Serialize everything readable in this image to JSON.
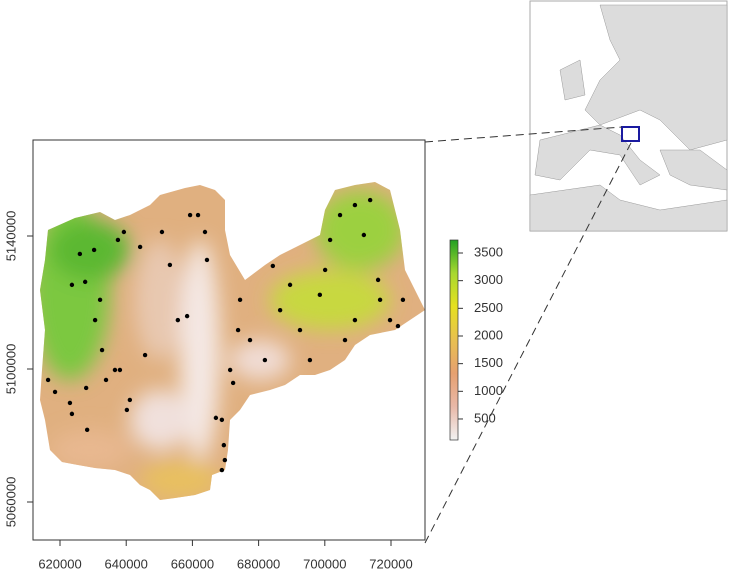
{
  "chart_data": {
    "type": "scatter",
    "x": [
      616400,
      618500,
      623000,
      623600,
      627900,
      628200,
      623600,
      627600,
      630300,
      626000,
      632100,
      630600,
      632700,
      633900,
      636600,
      638100,
      637500,
      639300,
      644200,
      645700,
      641100,
      640200,
      650800,
      653200,
      655600,
      658400,
      659300,
      661700,
      663800,
      664400,
      671400,
      672300,
      667100,
      668900,
      669500,
      669800,
      668900,
      674400,
      673800,
      677400,
      681900,
      684300,
      686500,
      689500,
      692500,
      695500,
      698500,
      700100,
      701600,
      704600,
      709100,
      711800,
      713700,
      716100,
      716700,
      719700,
      722100,
      723600,
      706100,
      709100
    ],
    "y": [
      5096700,
      5093100,
      5089800,
      5086500,
      5094300,
      5081700,
      5125300,
      5126200,
      5135800,
      5134600,
      5120800,
      5114700,
      5105700,
      5096700,
      5099700,
      5099700,
      5138800,
      5141200,
      5136700,
      5104200,
      5090700,
      5087700,
      5141200,
      5131300,
      5114700,
      5115900,
      5146300,
      5146300,
      5141200,
      5132800,
      5099700,
      5095800,
      5085300,
      5084700,
      5077100,
      5072600,
      5069600,
      5120800,
      5111700,
      5108700,
      5102700,
      5131000,
      5117700,
      5125300,
      5111700,
      5102700,
      5122300,
      5129800,
      5138800,
      5146300,
      5149300,
      5140300,
      5150800,
      5126800,
      5120800,
      5114700,
      5112900,
      5120800,
      5108700,
      5114700
    ],
    "color": "#000000",
    "xlim": [
      611840,
      730270
    ],
    "ylim": [
      5048570,
      5168870
    ],
    "xticks": [
      620000,
      640000,
      660000,
      680000,
      700000,
      720000
    ],
    "yticks": [
      5060000,
      5100000,
      5140000
    ],
    "colorbar": {
      "lim": [
        120,
        3735
      ],
      "ticks": [
        500,
        1000,
        1500,
        2000,
        2500,
        3000,
        3500
      ],
      "colors": [
        "#f2f2f2",
        "#e8b8a8",
        "#e6a070",
        "#e8c050",
        "#e6e020",
        "#a8d830",
        "#22a022"
      ]
    }
  }
}
